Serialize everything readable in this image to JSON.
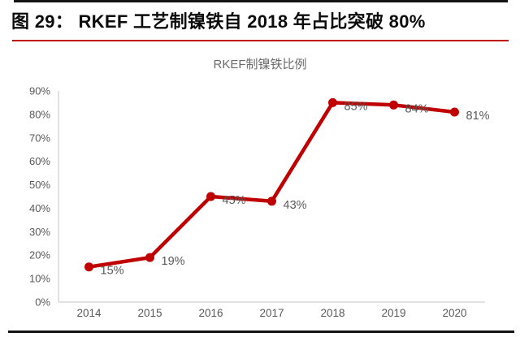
{
  "header": {
    "title": "图 29：  RKEF 工艺制镍铁自 2018 年占比突破 80%"
  },
  "chart_data": {
    "type": "line",
    "title": "RKEF制镍铁比例",
    "categories": [
      "2014",
      "2015",
      "2016",
      "2017",
      "2018",
      "2019",
      "2020"
    ],
    "series": [
      {
        "name": "RKEF制镍铁比例",
        "values": [
          15,
          19,
          45,
          43,
          85,
          84,
          81
        ],
        "data_labels": [
          "15%",
          "19%",
          "45%",
          "43%",
          "85%",
          "84%",
          "81%"
        ]
      }
    ],
    "xlabel": "",
    "ylabel": "",
    "ylim": [
      0,
      90
    ],
    "yticks": [
      0,
      10,
      20,
      30,
      40,
      50,
      60,
      70,
      80,
      90
    ],
    "ytick_labels": [
      "0%",
      "10%",
      "20%",
      "30%",
      "40%",
      "50%",
      "60%",
      "70%",
      "80%",
      "90%"
    ],
    "grid": false,
    "legend_position": "none",
    "colors": {
      "line": "#C00000",
      "marker": "#C00000",
      "data_label": "#595959",
      "tick_label": "#595959",
      "axis_line": "#D9D9D9",
      "chart_title": "#6B6B6B"
    }
  },
  "decorations": {
    "top_rule_color": "#141414",
    "caption_underline_color": "#C00000",
    "bottom_rule_color": "#141414"
  }
}
